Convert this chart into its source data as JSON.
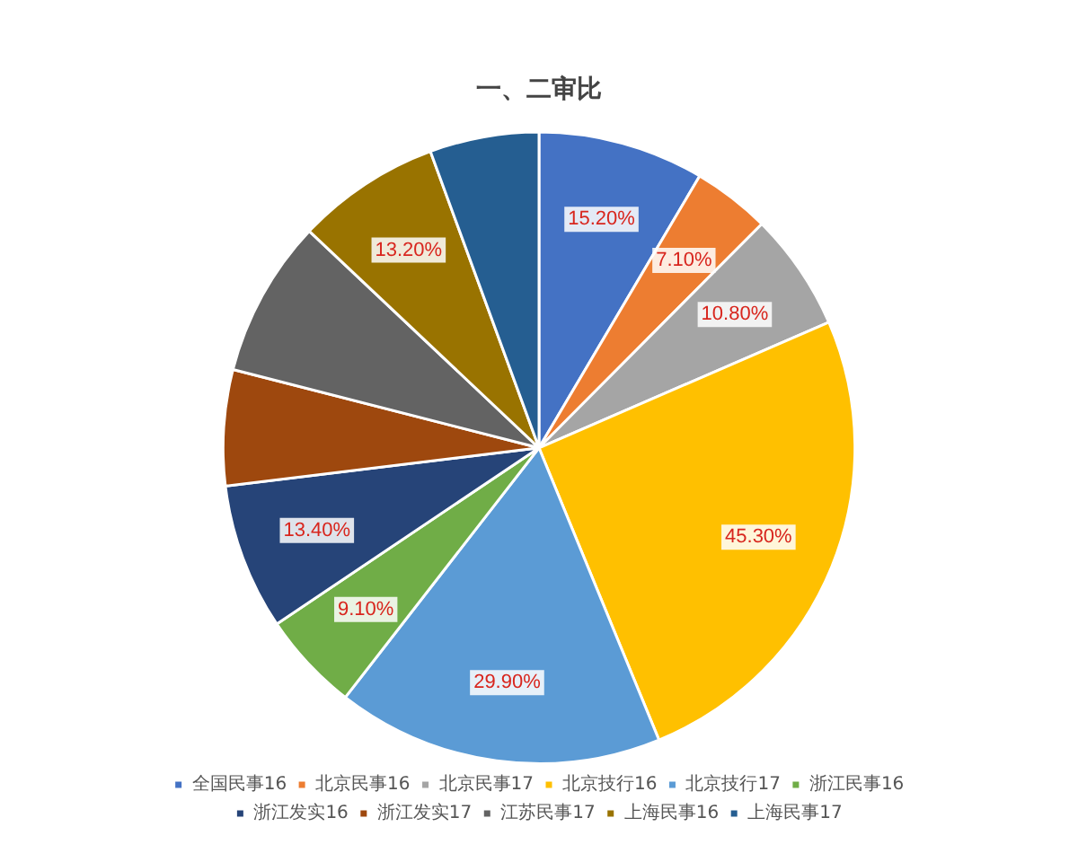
{
  "chart_data": {
    "type": "pie",
    "title": "一、二审比",
    "categories": [
      "全国民事16",
      "北京民事16",
      "北京民事17",
      "北京技行16",
      "北京技行17",
      "浙江民事16",
      "浙江发实16",
      "浙江发实17",
      "江苏民事17",
      "上海民事16",
      "上海民事17"
    ],
    "values": [
      15.2,
      7.1,
      10.8,
      45.3,
      29.9,
      9.1,
      13.4,
      10.6,
      14.4,
      13.2,
      10
    ],
    "value_labels": [
      "15.20%",
      "7.10%",
      "10.80%",
      "45.30%",
      "29.90%",
      "9.10%",
      "13.40%",
      null,
      null,
      "13.20%",
      null
    ],
    "colors": [
      "#4472c4",
      "#ed7d31",
      "#a5a5a5",
      "#ffc000",
      "#5b9bd5",
      "#70ad47",
      "#264478",
      "#9e480e",
      "#636363",
      "#997300",
      "#255e91"
    ],
    "legend": "bottom"
  }
}
